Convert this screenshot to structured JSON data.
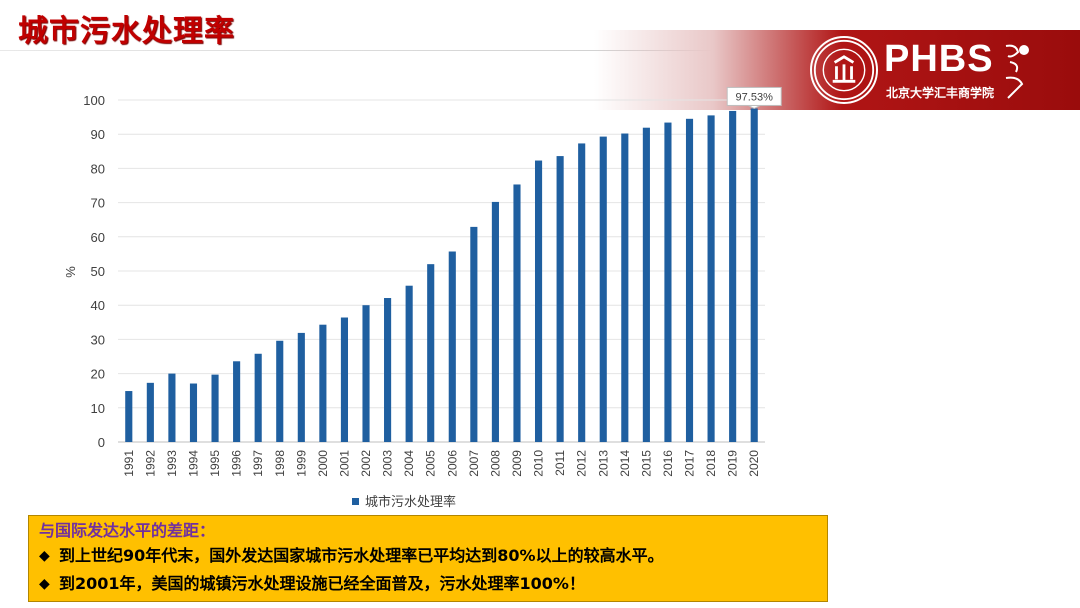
{
  "slide": {
    "title": "城市污水处理率"
  },
  "logo": {
    "name": "PHBS",
    "subtitle": "北京大学汇丰商学院",
    "calligraphy": "商學院"
  },
  "chart_data": {
    "type": "bar",
    "categories": [
      "1991",
      "1992",
      "1993",
      "1994",
      "1995",
      "1996",
      "1997",
      "1998",
      "1999",
      "2000",
      "2001",
      "2002",
      "2003",
      "2004",
      "2005",
      "2006",
      "2007",
      "2008",
      "2009",
      "2010",
      "2011",
      "2012",
      "2013",
      "2014",
      "2015",
      "2016",
      "2017",
      "2018",
      "2019",
      "2020"
    ],
    "series": [
      {
        "name": "城市污水处理率",
        "values": [
          14.9,
          17.3,
          20.0,
          17.1,
          19.7,
          23.6,
          25.8,
          29.6,
          31.9,
          34.3,
          36.4,
          40.0,
          42.1,
          45.7,
          52.0,
          55.7,
          62.9,
          70.2,
          75.3,
          82.3,
          83.6,
          87.3,
          89.3,
          90.2,
          91.9,
          93.4,
          94.5,
          95.5,
          96.8,
          97.53
        ]
      }
    ],
    "ylabel": "%",
    "ylim": [
      0,
      100
    ],
    "yticks": [
      0,
      10,
      20,
      30,
      40,
      50,
      60,
      70,
      80,
      90,
      100
    ],
    "annotation": {
      "category": "2020",
      "label": "97.53%"
    },
    "color": "#1f5fa0",
    "grid": true,
    "legend": "bottom"
  },
  "infobox": {
    "heading": "与国际发达水平的差距：",
    "bullets": [
      "到上世纪90年代末，国外发达国家城市污水处理率已平均达到80%以上的较高水平。",
      "到2001年，美国的城镇污水处理设施已经全面普及，污水处理率100%！"
    ]
  }
}
